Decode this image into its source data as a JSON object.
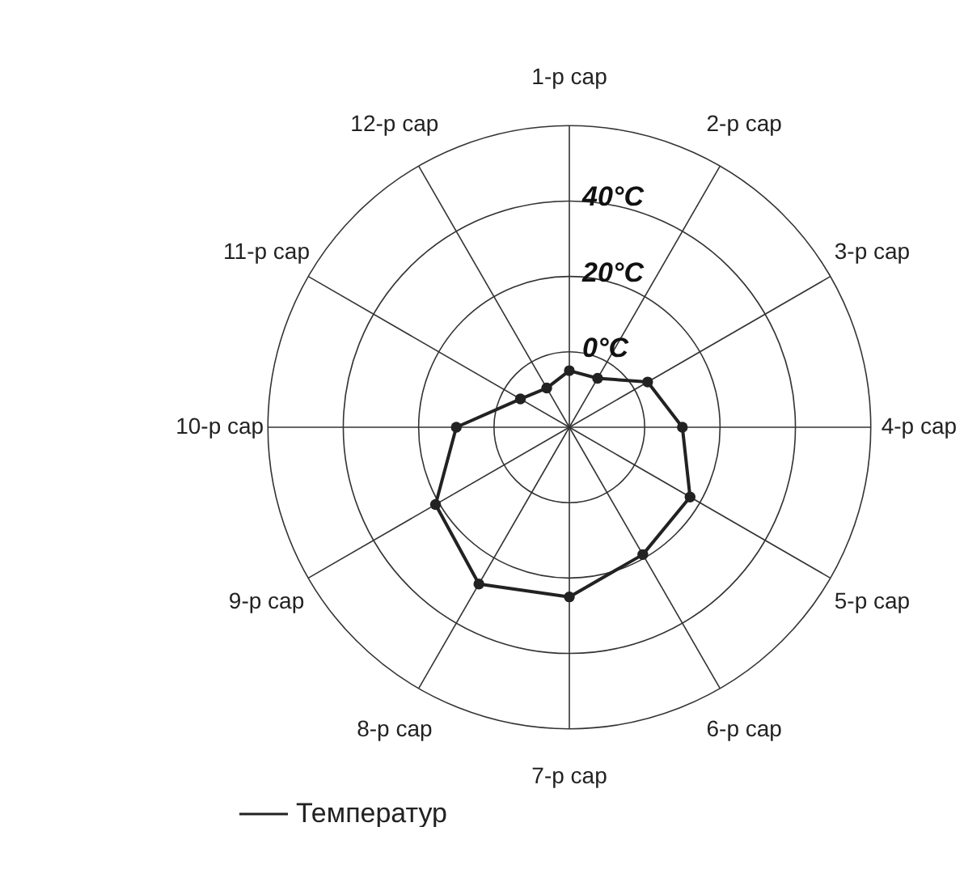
{
  "chart_data": {
    "type": "radar",
    "categories": [
      "1-р сар",
      "2-р сар",
      "3-р сар",
      "4-р сар",
      "5-р сар",
      "6-р сар",
      "7-р сар",
      "8-р сар",
      "9-р сар",
      "10-р сар",
      "11-р сар",
      "12-р сар"
    ],
    "series": [
      {
        "name": "Температур",
        "color": "#222222",
        "values": [
          -5,
          -5,
          4,
          10,
          17,
          19,
          25,
          28,
          21,
          10,
          -5,
          -8
        ]
      }
    ],
    "ylim": [
      -20,
      60
    ],
    "yticks": [
      {
        "value": 0,
        "label": "0°C"
      },
      {
        "value": 20,
        "label": "20°C"
      },
      {
        "value": 40,
        "label": "40°C"
      }
    ],
    "grid": true,
    "marker": "circle",
    "legend": "bottom"
  }
}
